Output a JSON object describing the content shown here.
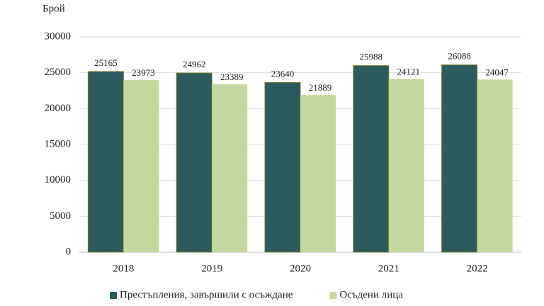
{
  "chart_data": {
    "type": "bar",
    "y_label": "Брой",
    "categories": [
      "2018",
      "2019",
      "2020",
      "2021",
      "2022"
    ],
    "series": [
      {
        "name": "Престъпления, завършили с осъждане",
        "color": "#2b5b5d",
        "values": [
          25165,
          24962,
          23640,
          25988,
          26088
        ]
      },
      {
        "name": "Осъдени лица",
        "color": "#c4d89e",
        "values": [
          23973,
          23389,
          21889,
          24121,
          24047
        ]
      }
    ],
    "ylim": [
      0,
      30000
    ],
    "yticks": [
      0,
      5000,
      10000,
      15000,
      20000,
      25000,
      30000
    ],
    "grid": true,
    "legend": "bottom"
  }
}
